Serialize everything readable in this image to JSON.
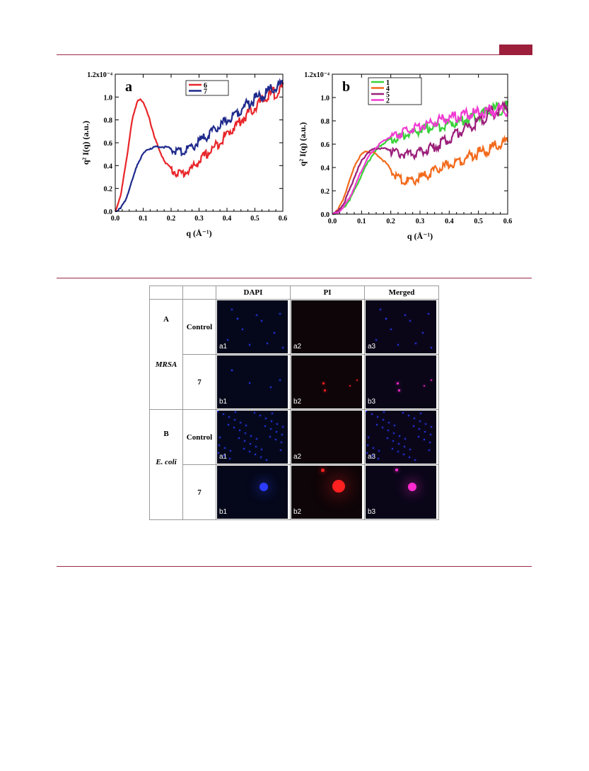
{
  "chart_data": [
    {
      "type": "line",
      "panel_letter": "a",
      "xlabel": "q (Å⁻¹)",
      "ylabel": "q² I(q) (a.u.)",
      "xlim": [
        0.0,
        0.6
      ],
      "ylim": [
        0.0,
        1.2
      ],
      "y_multiplier_label": "x10⁻⁴",
      "xticks": [
        "0.0",
        "0.1",
        "0.2",
        "0.3",
        "0.4",
        "0.5",
        "0.6"
      ],
      "yticks": [
        "0.0",
        "0.2",
        "0.4",
        "0.6",
        "0.8",
        "1.0",
        "1.2x10⁻⁴"
      ],
      "legend_position": "top-right",
      "series": [
        {
          "name": "6",
          "color": "#e8262a",
          "x": [
            0.0,
            0.02,
            0.04,
            0.06,
            0.08,
            0.09,
            0.1,
            0.12,
            0.14,
            0.16,
            0.18,
            0.2,
            0.22,
            0.24,
            0.26,
            0.28,
            0.3,
            0.35,
            0.4,
            0.45,
            0.5,
            0.55,
            0.6
          ],
          "y": [
            0.0,
            0.15,
            0.45,
            0.8,
            0.97,
            0.99,
            0.96,
            0.83,
            0.66,
            0.52,
            0.43,
            0.38,
            0.355,
            0.35,
            0.37,
            0.41,
            0.46,
            0.57,
            0.7,
            0.82,
            0.94,
            1.04,
            1.11
          ]
        },
        {
          "name": "7",
          "color": "#1f2a8c",
          "x": [
            0.0,
            0.02,
            0.04,
            0.06,
            0.08,
            0.1,
            0.12,
            0.14,
            0.16,
            0.18,
            0.2,
            0.22,
            0.24,
            0.26,
            0.28,
            0.3,
            0.35,
            0.4,
            0.45,
            0.5,
            0.55,
            0.6
          ],
          "y": [
            0.0,
            0.03,
            0.12,
            0.27,
            0.42,
            0.51,
            0.55,
            0.565,
            0.57,
            0.565,
            0.555,
            0.545,
            0.545,
            0.56,
            0.59,
            0.63,
            0.72,
            0.82,
            0.92,
            1.01,
            1.08,
            1.13
          ]
        }
      ]
    },
    {
      "type": "line",
      "panel_letter": "b",
      "xlabel": "q (Å⁻¹)",
      "ylabel": "q² I(q) (a.u.)",
      "xlim": [
        0.0,
        0.6
      ],
      "ylim": [
        0.0,
        1.2
      ],
      "y_multiplier_label": "x10⁻⁴",
      "xticks": [
        "0.0",
        "0.1",
        "0.2",
        "0.3",
        "0.4",
        "0.5",
        "0.6"
      ],
      "yticks": [
        "0.0",
        "0.2",
        "0.4",
        "0.6",
        "0.8",
        "1.0",
        "1.2x10⁻⁴"
      ],
      "legend_position": "top-left",
      "series": [
        {
          "name": "1",
          "color": "#3ad13a",
          "x": [
            0.0,
            0.02,
            0.04,
            0.06,
            0.08,
            0.1,
            0.12,
            0.14,
            0.16,
            0.18,
            0.2,
            0.25,
            0.3,
            0.35,
            0.4,
            0.45,
            0.5,
            0.55,
            0.6
          ],
          "y": [
            0.0,
            0.02,
            0.06,
            0.13,
            0.23,
            0.34,
            0.44,
            0.52,
            0.58,
            0.62,
            0.65,
            0.7,
            0.74,
            0.77,
            0.8,
            0.83,
            0.87,
            0.92,
            0.95
          ]
        },
        {
          "name": "4",
          "color": "#f26a1b",
          "x": [
            0.0,
            0.02,
            0.04,
            0.06,
            0.08,
            0.1,
            0.12,
            0.14,
            0.16,
            0.18,
            0.2,
            0.22,
            0.24,
            0.26,
            0.28,
            0.3,
            0.35,
            0.4,
            0.45,
            0.5,
            0.55,
            0.6
          ],
          "y": [
            0.0,
            0.04,
            0.15,
            0.3,
            0.44,
            0.52,
            0.545,
            0.53,
            0.5,
            0.45,
            0.39,
            0.34,
            0.31,
            0.3,
            0.31,
            0.33,
            0.39,
            0.45,
            0.5,
            0.55,
            0.6,
            0.64
          ]
        },
        {
          "name": "5",
          "color": "#9b1f7a",
          "x": [
            0.0,
            0.02,
            0.04,
            0.06,
            0.08,
            0.1,
            0.12,
            0.14,
            0.16,
            0.18,
            0.2,
            0.22,
            0.24,
            0.26,
            0.28,
            0.3,
            0.35,
            0.4,
            0.45,
            0.5,
            0.55,
            0.6
          ],
          "y": [
            0.0,
            0.03,
            0.1,
            0.22,
            0.35,
            0.46,
            0.53,
            0.56,
            0.57,
            0.565,
            0.555,
            0.545,
            0.535,
            0.53,
            0.535,
            0.55,
            0.6,
            0.67,
            0.75,
            0.83,
            0.9,
            0.96
          ]
        },
        {
          "name": "2",
          "color": "#f03ad2",
          "x": [
            0.0,
            0.02,
            0.04,
            0.06,
            0.08,
            0.1,
            0.12,
            0.14,
            0.16,
            0.18,
            0.2,
            0.25,
            0.3,
            0.35,
            0.4,
            0.45,
            0.5,
            0.55,
            0.6
          ],
          "y": [
            0.0,
            0.02,
            0.07,
            0.15,
            0.26,
            0.38,
            0.48,
            0.55,
            0.6,
            0.64,
            0.67,
            0.73,
            0.78,
            0.82,
            0.85,
            0.87,
            0.9,
            0.92,
            0.93
          ]
        }
      ]
    }
  ],
  "table": {
    "headers": [
      "",
      "",
      "DAPI",
      "PI",
      "Merged"
    ],
    "groups": [
      {
        "letter": "A",
        "organism": "MRSA",
        "rows": [
          {
            "label": "Control",
            "cells": [
              "a1",
              "a2",
              "a3"
            ]
          },
          {
            "label": "7",
            "cells": [
              "b1",
              "b2",
              "b3"
            ]
          }
        ]
      },
      {
        "letter": "B",
        "organism": "E. coli",
        "rows": [
          {
            "label": "Control",
            "cells": [
              "a1",
              "a2",
              "a3"
            ]
          },
          {
            "label": "7",
            "cells": [
              "b1",
              "b2",
              "b3"
            ]
          }
        ]
      }
    ]
  },
  "colors": {
    "rule": "#9c2a46",
    "tab": "#9c1f3c",
    "dapi": "#2b3cff",
    "pi": "#ff2020",
    "merged": "#ff2bd0"
  }
}
